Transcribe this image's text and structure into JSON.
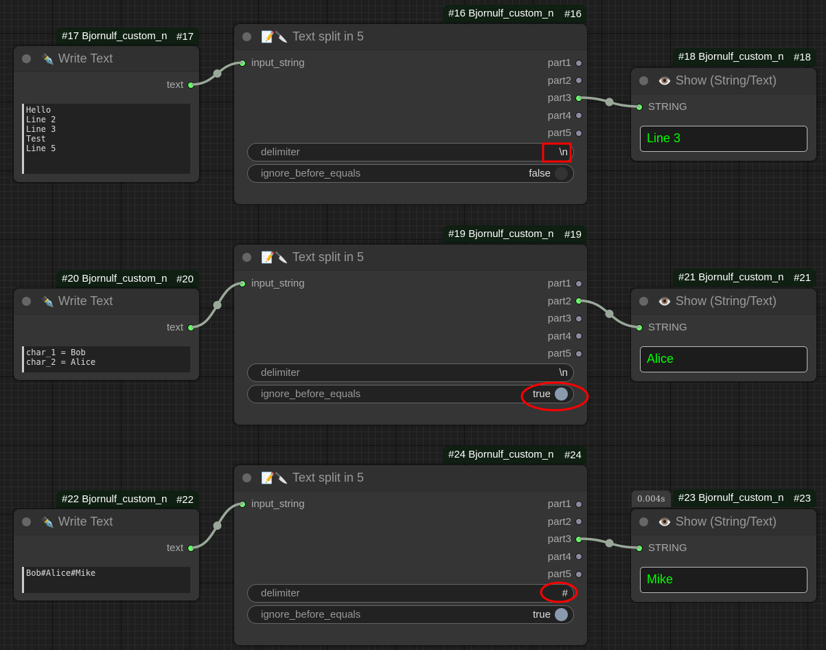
{
  "rows": [
    {
      "write": {
        "badge": "#17 Bjornulf_custom_n",
        "id": "#17",
        "title": "Write Text",
        "output": "text",
        "text": "Hello\nLine 2\nLine 3\nTest\nLine 5"
      },
      "split": {
        "badge": "#16 Bjornulf_custom_n",
        "id": "#16",
        "title": "Text split in 5",
        "input": "input_string",
        "outputs": [
          "part1",
          "part2",
          "part3",
          "part4",
          "part5"
        ],
        "connected": 2,
        "delimiter_label": "delimiter",
        "delimiter": "\\n",
        "ignore_label": "ignore_before_equals",
        "ignore": "false",
        "ignore_on": false
      },
      "show": {
        "badge": "#18 Bjornulf_custom_n",
        "id": "#18",
        "title": "Show (String/Text)",
        "input": "STRING",
        "value": "Line 3"
      }
    },
    {
      "write": {
        "badge": "#20 Bjornulf_custom_n",
        "id": "#20",
        "title": "Write Text",
        "output": "text",
        "text": "char_1 = Bob\nchar_2 = Alice"
      },
      "split": {
        "badge": "#19 Bjornulf_custom_n",
        "id": "#19",
        "title": "Text split in 5",
        "input": "input_string",
        "outputs": [
          "part1",
          "part2",
          "part3",
          "part4",
          "part5"
        ],
        "connected": 1,
        "delimiter_label": "delimiter",
        "delimiter": "\\n",
        "ignore_label": "ignore_before_equals",
        "ignore": "true",
        "ignore_on": true
      },
      "show": {
        "badge": "#21 Bjornulf_custom_n",
        "id": "#21",
        "title": "Show (String/Text)",
        "input": "STRING",
        "value": "Alice"
      }
    },
    {
      "write": {
        "badge": "#22 Bjornulf_custom_n",
        "id": "#22",
        "title": "Write Text",
        "output": "text",
        "text": "Bob#Alice#Mike"
      },
      "split": {
        "badge": "#24 Bjornulf_custom_n",
        "id": "#24",
        "title": "Text split in 5",
        "input": "input_string",
        "outputs": [
          "part1",
          "part2",
          "part3",
          "part4",
          "part5"
        ],
        "connected": 2,
        "delimiter_label": "delimiter",
        "delimiter": "#",
        "ignore_label": "ignore_before_equals",
        "ignore": "true",
        "ignore_on": true
      },
      "show": {
        "badge": "#23 Bjornulf_custom_n",
        "id": "#23",
        "title": "Show (String/Text)",
        "input": "STRING",
        "value": "Mike",
        "time": "0.004s"
      }
    }
  ],
  "icons": {
    "write": "fountain-pen-icon",
    "split": "memo-knife-icon",
    "show": "eye-icon"
  },
  "colors": {
    "connected_slot": "#66ff66",
    "link": "#9aa89a",
    "annotation": "#ff0000",
    "show_text": "#00ff00"
  }
}
